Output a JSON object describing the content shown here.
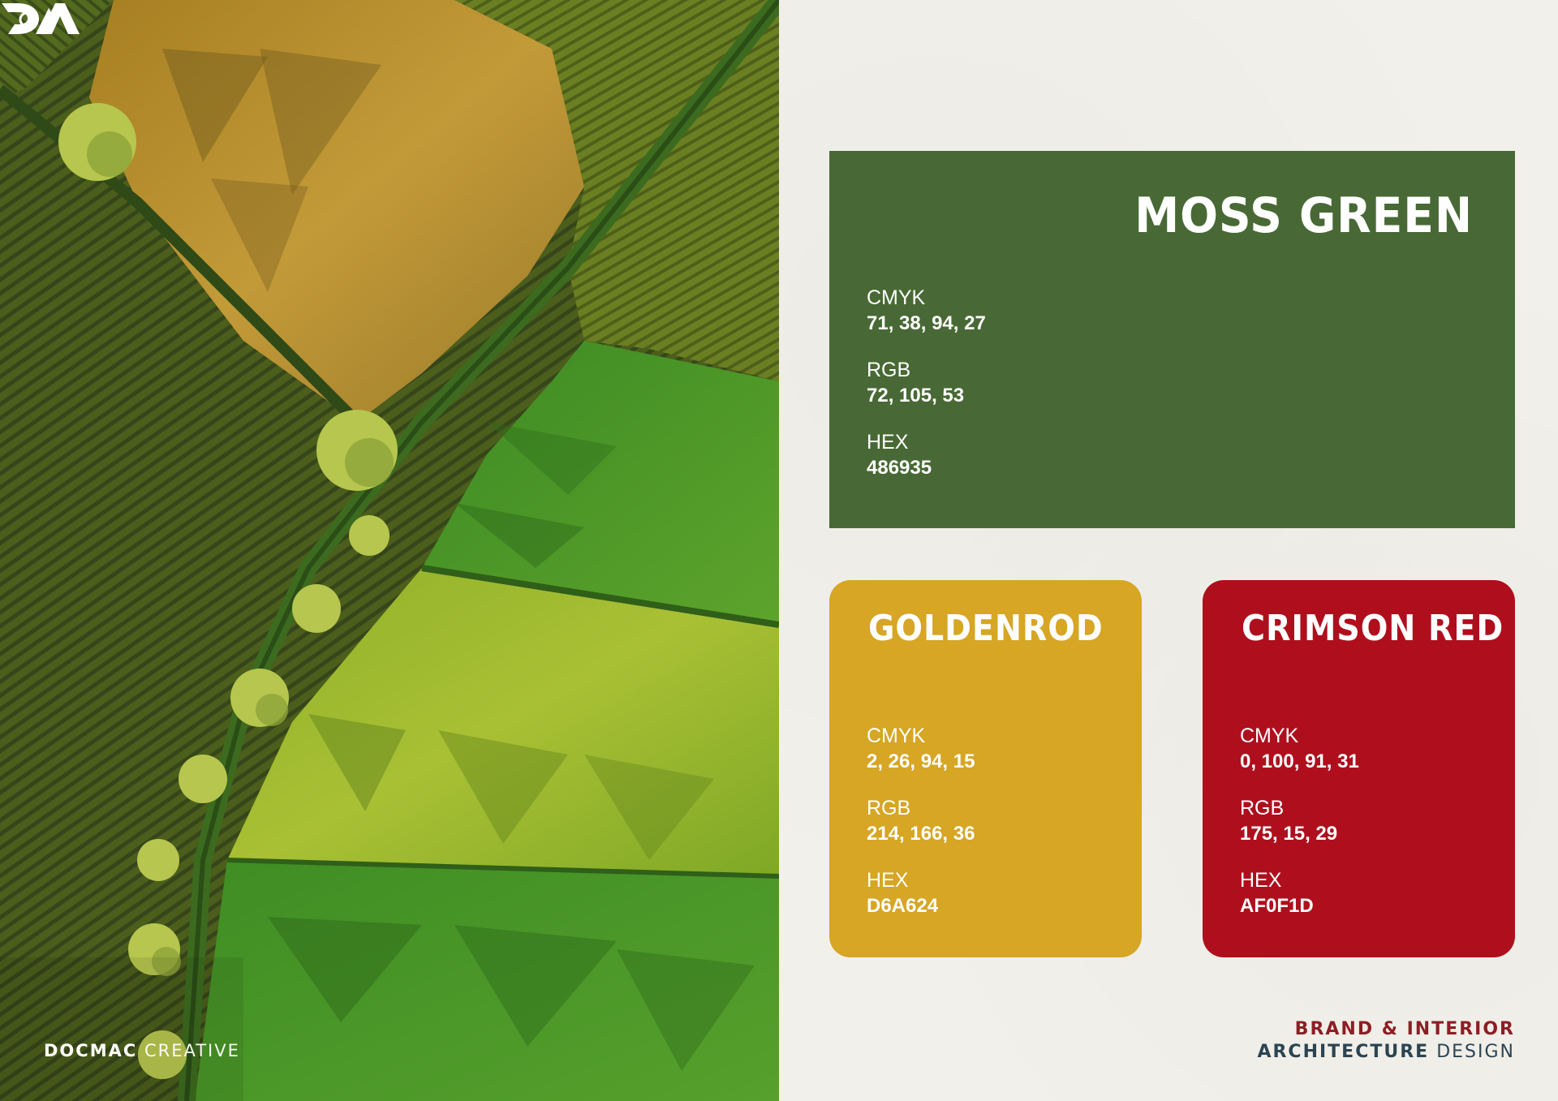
{
  "brand": {
    "name_bold": "DOCMAC",
    "name_light": "CREATIVE"
  },
  "footer": {
    "line1": "BRAND & INTERIOR",
    "line2_bold": "ARCHITECTURE",
    "line2_light": "DESIGN"
  },
  "palette": [
    {
      "name": "MOSS GREEN",
      "color": "#486935",
      "cmyk_label": "CMYK",
      "cmyk": "71, 38, 94, 27",
      "rgb_label": "RGB",
      "rgb": "72, 105, 53",
      "hex_label": "HEX",
      "hex": "486935"
    },
    {
      "name": "GOLDENROD",
      "color": "#d6a624",
      "cmyk_label": "CMYK",
      "cmyk": "2, 26, 94, 15",
      "rgb_label": "RGB",
      "rgb": "214, 166, 36",
      "hex_label": "HEX",
      "hex": "D6A624"
    },
    {
      "name": "CRIMSON RED",
      "color": "#af0f1d",
      "cmyk_label": "CMYK",
      "cmyk": "0, 100, 91, 31",
      "rgb_label": "RGB",
      "rgb": "175, 15, 29",
      "hex_label": "HEX",
      "hex": "AF0F1D"
    }
  ]
}
